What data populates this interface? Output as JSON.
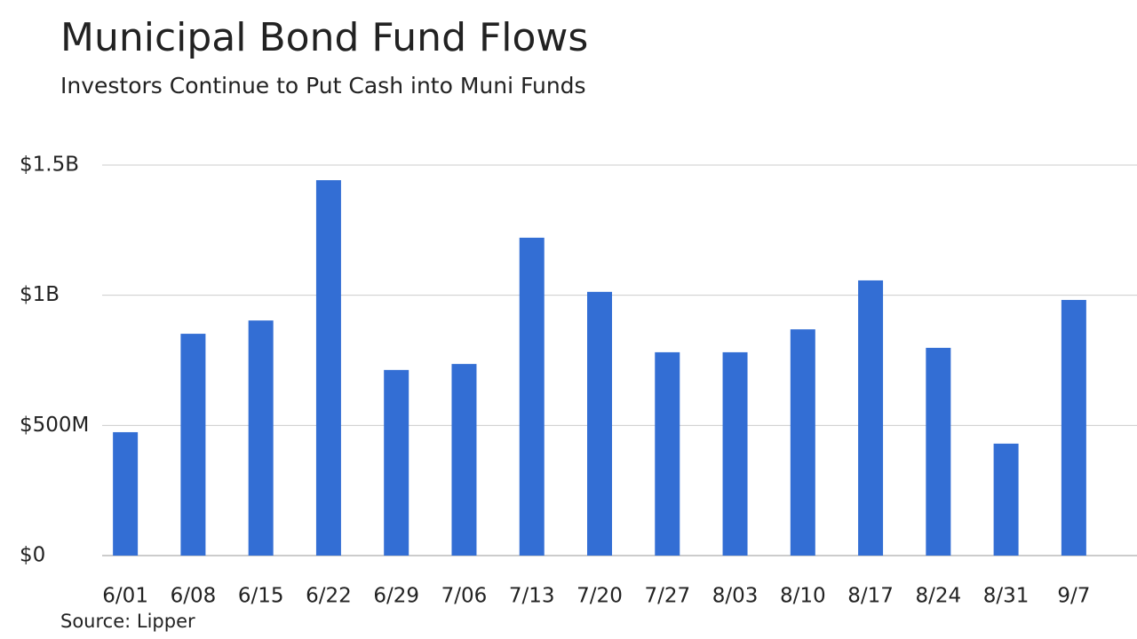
{
  "chart_data": {
    "type": "bar",
    "title": "Municipal Bond Fund Flows",
    "subtitle": "Investors Continue to Put Cash into Muni Funds",
    "source": "Source: Lipper",
    "categories": [
      "6/01",
      "6/08",
      "6/15",
      "6/22",
      "6/29",
      "7/06",
      "7/13",
      "7/20",
      "7/27",
      "8/03",
      "8/10",
      "8/17",
      "8/24",
      "8/31",
      "9/7"
    ],
    "values": [
      474000000,
      852000000,
      903000000,
      1442000000,
      713000000,
      736000000,
      1221000000,
      1013000000,
      781000000,
      781000000,
      869000000,
      1057000000,
      798000000,
      430000000,
      982000000
    ],
    "color": "#336ed4",
    "ylim": [
      0,
      1500000000
    ],
    "yticks": [
      {
        "value": 0,
        "label": "$0"
      },
      {
        "value": 500000000,
        "label": "$500M"
      },
      {
        "value": 1000000000,
        "label": "$1B"
      },
      {
        "value": 1500000000,
        "label": "$1.5B"
      }
    ],
    "grid": true
  }
}
